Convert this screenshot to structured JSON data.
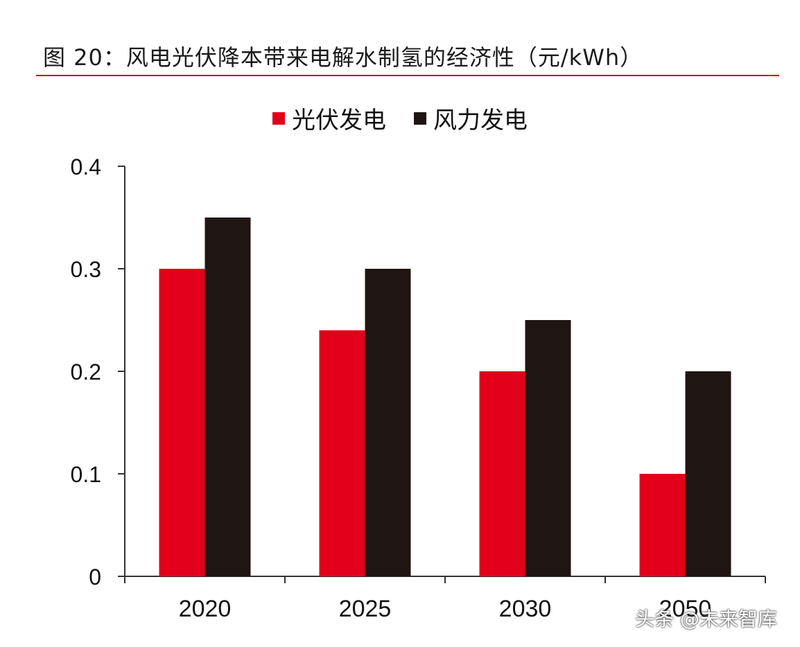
{
  "title": "图 20：风电光伏降本带来电解水制氢的经济性（元/kWh）",
  "watermark": "头条 @未来智库",
  "chart_data": {
    "type": "bar",
    "categories": [
      "2020",
      "2025",
      "2030",
      "2050"
    ],
    "series": [
      {
        "name": "光伏发电",
        "color": "#e2001a",
        "values": [
          0.3,
          0.24,
          0.2,
          0.1
        ]
      },
      {
        "name": "风力发电",
        "color": "#1f1512",
        "values": [
          0.35,
          0.3,
          0.25,
          0.2
        ]
      }
    ],
    "yticks": [
      "0",
      "0.1",
      "0.2",
      "0.3",
      "0.4"
    ],
    "ylim": [
      0,
      0.4
    ],
    "grid": false,
    "legend": "top-center"
  }
}
